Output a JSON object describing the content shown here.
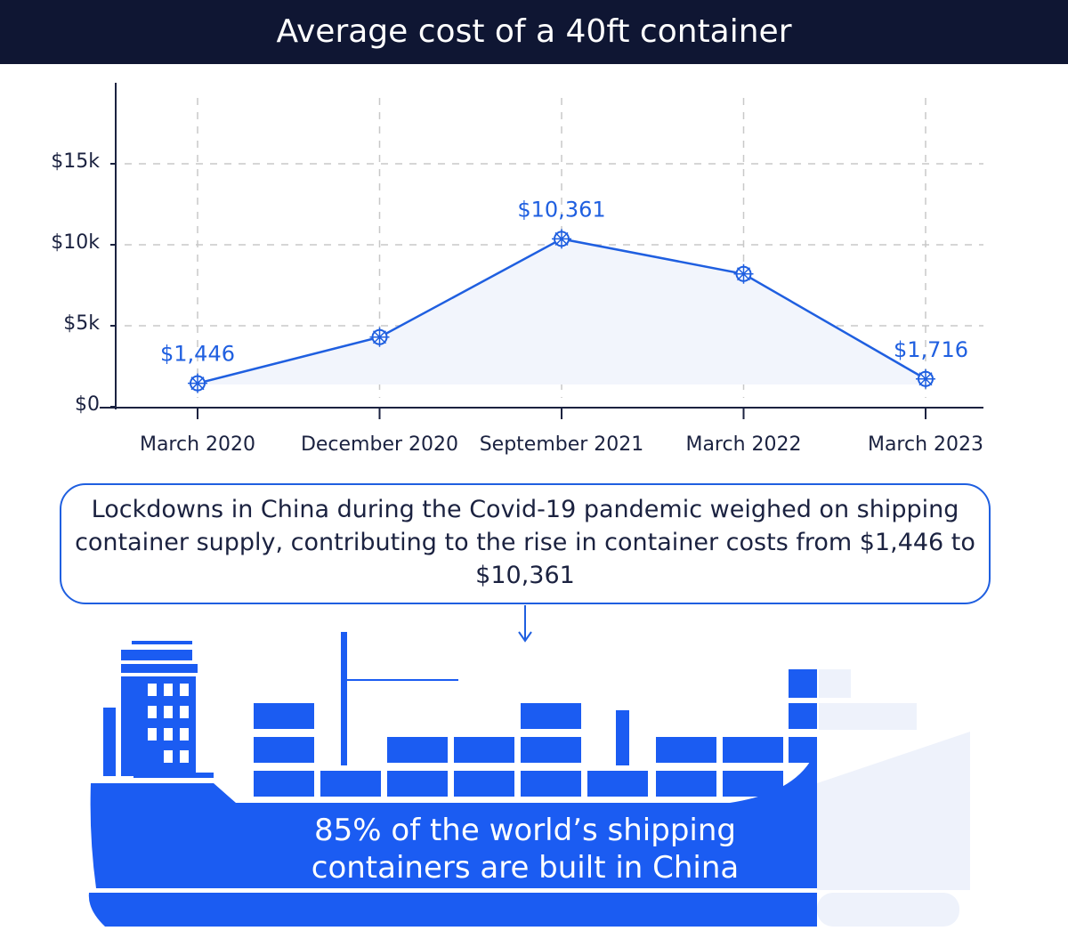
{
  "chart_data": {
    "type": "line",
    "title": "Average cost of a 40ft container",
    "categories": [
      "March 2020",
      "December 2020",
      "September 2021",
      "March 2022",
      "March 2023"
    ],
    "values": [
      1446,
      4300,
      10361,
      8200,
      1716
    ],
    "value_labels": [
      "$1,446",
      null,
      "$10,361",
      null,
      "$1,716"
    ],
    "color": "#1f5fe0",
    "ylim": [
      0,
      20000
    ],
    "yticks": [
      {
        "value": 0,
        "label": "$0"
      },
      {
        "value": 5000,
        "label": "$5k"
      },
      {
        "value": 10000,
        "label": "$10k"
      },
      {
        "value": 15000,
        "label": "$15k"
      }
    ],
    "grid": true,
    "annotations": [
      "Lockdowns in China during the Covid-19 pandemic weighed on shipping container supply, contributing to the rise in container costs from $1,446 to $10,361",
      "85% of the world’s shipping containers are built in China"
    ]
  }
}
